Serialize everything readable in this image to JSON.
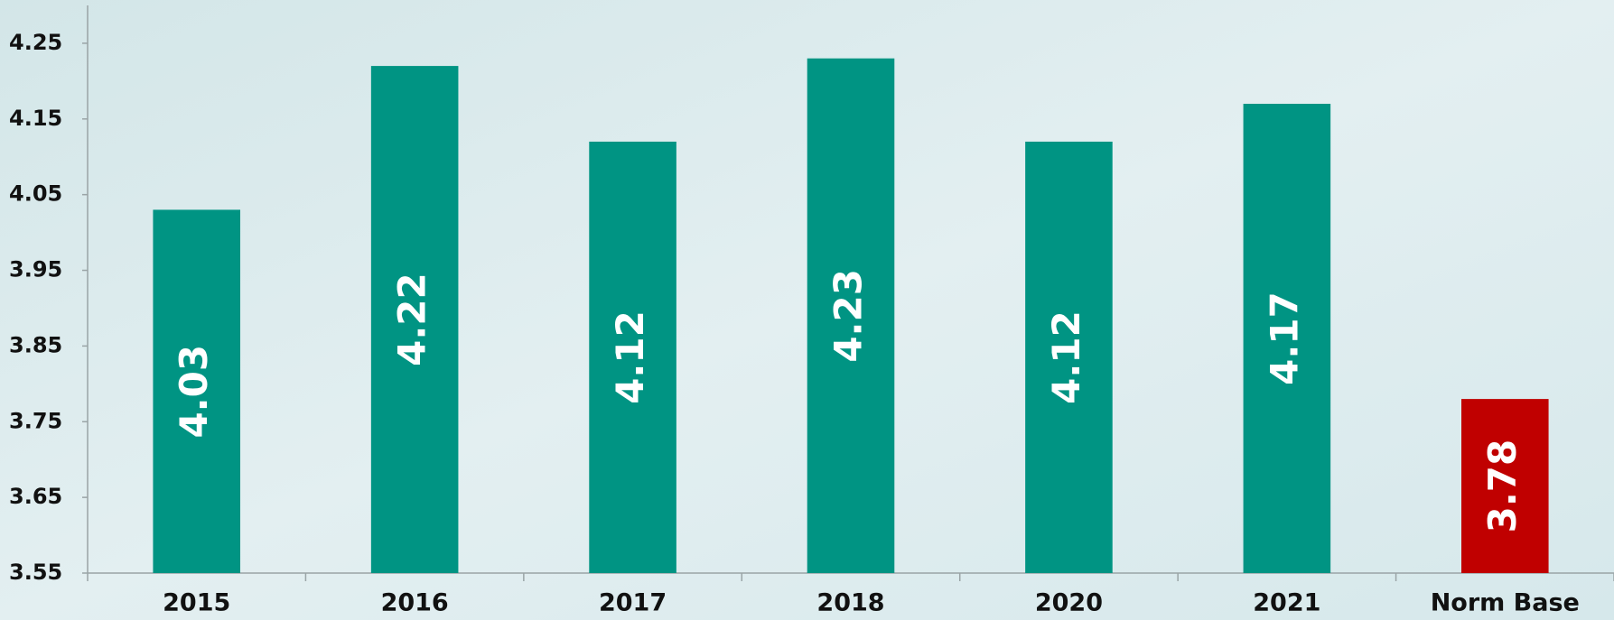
{
  "chart_data": {
    "type": "bar",
    "categories": [
      "2015",
      "2016",
      "2017",
      "2018",
      "2020",
      "2021",
      "Norm Base"
    ],
    "values": [
      4.03,
      4.22,
      4.12,
      4.23,
      4.12,
      4.17,
      3.78
    ],
    "colors": [
      "#009483",
      "#009483",
      "#009483",
      "#009483",
      "#009483",
      "#009483",
      "#c00000"
    ],
    "ylim": [
      3.55,
      4.3
    ],
    "yticks": [
      3.55,
      3.65,
      3.75,
      3.85,
      3.95,
      4.05,
      4.15,
      4.25
    ],
    "grid": false
  }
}
